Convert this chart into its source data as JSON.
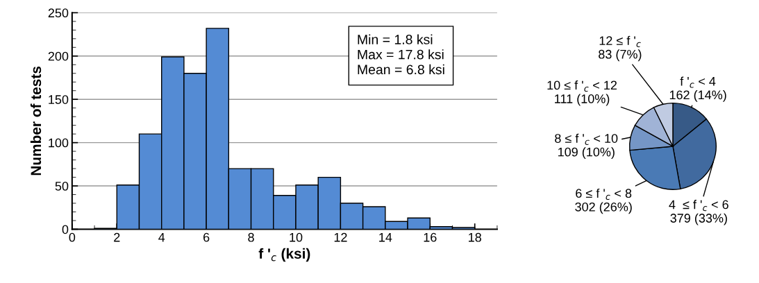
{
  "chart_data": [
    {
      "type": "histogram",
      "xlabel": "f '$_{c}$ (ksi)",
      "ylabel": "Number of tests",
      "bins": [
        1,
        2,
        3,
        4,
        5,
        6,
        7,
        8,
        9,
        10,
        11,
        12,
        13,
        14,
        15,
        16,
        17,
        18
      ],
      "values": [
        1,
        51,
        110,
        199,
        180,
        232,
        70,
        70,
        39,
        51,
        60,
        30,
        26,
        9,
        13,
        3,
        2
      ],
      "color": "#548bd4",
      "xlim": [
        0,
        19
      ],
      "xticks": [
        0,
        2,
        4,
        6,
        8,
        10,
        12,
        14,
        16,
        18
      ],
      "ylim": [
        0,
        250
      ],
      "yticks": [
        0,
        50,
        100,
        150,
        200,
        250
      ],
      "grid": "y",
      "annotations": [
        "Min = 1.8 ksi\nMax = 17.8 ksi\nMean = 6.8 ksi"
      ]
    },
    {
      "type": "pie",
      "categories": [
        "f '$_{c}$ < 4",
        "4  ≤ f '$_{c}$ < 6",
        "6 ≤ f '$_{c}$ < 8",
        "8 ≤ f '$_{c}$ < 10",
        "10 ≤ f '$_{c}$ < 12",
        "12 ≤ f '$_{c}$"
      ],
      "values": [
        162,
        379,
        302,
        109,
        111,
        83
      ],
      "value_labels": [
        "162 (14%)",
        "379 (33%)",
        "302 (26%)",
        "109 (10%)",
        "111 (10%)",
        "83 (7%)"
      ],
      "colors": [
        "#375a87",
        "#416a9f",
        "#4a7ab5",
        "#7596c6",
        "#a0b3d6",
        "#c0cbe2"
      ]
    }
  ]
}
